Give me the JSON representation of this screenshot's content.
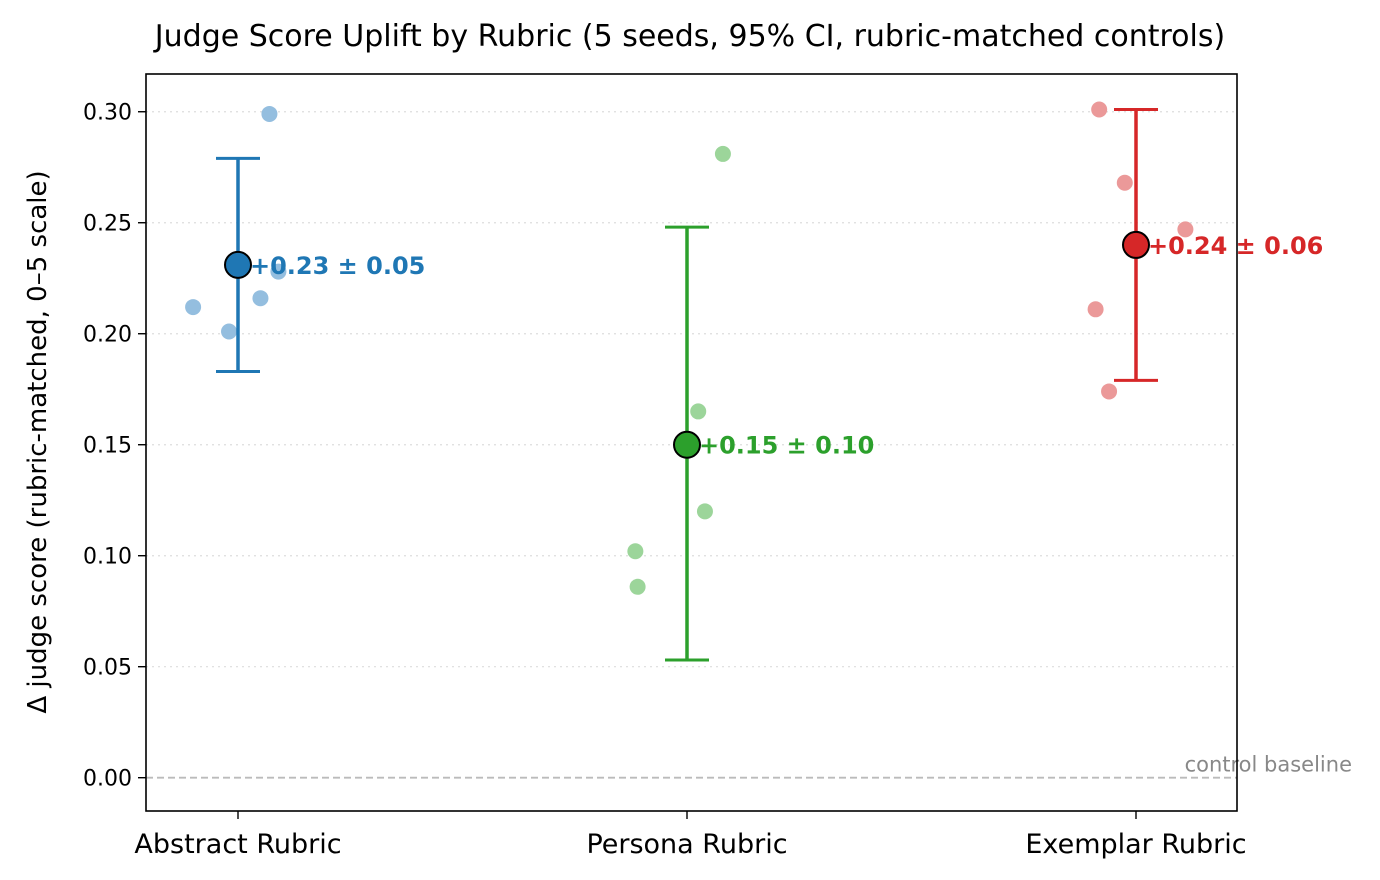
{
  "chart_data": {
    "type": "scatter",
    "title": "Judge Score Uplift by Rubric (5 seeds, 95% CI, rubric-matched controls)",
    "xlabel": "",
    "ylabel": "Δ judge score (rubric-matched, 0–5 scale)",
    "ylim": [
      -0.015,
      0.317
    ],
    "yticks": [
      0.0,
      0.05,
      0.1,
      0.15,
      0.2,
      0.25,
      0.3
    ],
    "ytick_labels": [
      "0.00",
      "0.05",
      "0.10",
      "0.15",
      "0.20",
      "0.25",
      "0.30"
    ],
    "grid": "horizontal dotted",
    "categories": [
      "Abstract Rubric",
      "Persona Rubric",
      "Exemplar Rubric"
    ],
    "series": [
      {
        "category": "Abstract Rubric",
        "color": "#1f77b4",
        "light_color": "#94bedf",
        "mean": 0.231,
        "ci_low": 0.183,
        "ci_high": 0.279,
        "label": "+0.23 ± 0.05",
        "seeds": [
          {
            "offset": -0.1,
            "value": 0.212
          },
          {
            "offset": -0.02,
            "value": 0.201
          },
          {
            "offset": 0.05,
            "value": 0.216
          },
          {
            "offset": 0.07,
            "value": 0.299
          },
          {
            "offset": 0.09,
            "value": 0.228
          }
        ]
      },
      {
        "category": "Persona Rubric",
        "color": "#2ca02c",
        "light_color": "#9cd59a",
        "mean": 0.15,
        "ci_low": 0.053,
        "ci_high": 0.248,
        "label": "+0.15 ± 0.10",
        "seeds": [
          {
            "offset": -0.115,
            "value": 0.102
          },
          {
            "offset": -0.11,
            "value": 0.086
          },
          {
            "offset": 0.025,
            "value": 0.165
          },
          {
            "offset": 0.04,
            "value": 0.12
          },
          {
            "offset": 0.08,
            "value": 0.281
          }
        ]
      },
      {
        "category": "Exemplar Rubric",
        "color": "#d62728",
        "light_color": "#eb9999",
        "mean": 0.24,
        "ci_low": 0.179,
        "ci_high": 0.301,
        "label": "+0.24 ± 0.06",
        "seeds": [
          {
            "offset": -0.09,
            "value": 0.211
          },
          {
            "offset": -0.082,
            "value": 0.301
          },
          {
            "offset": -0.06,
            "value": 0.174
          },
          {
            "offset": -0.025,
            "value": 0.268
          },
          {
            "offset": 0.11,
            "value": 0.247
          }
        ]
      }
    ],
    "baseline": {
      "value": 0.0,
      "label": "control baseline",
      "color": "#bbbbbb"
    }
  }
}
